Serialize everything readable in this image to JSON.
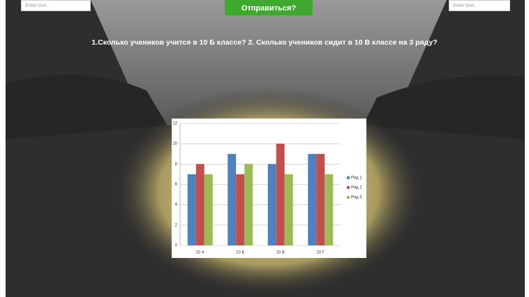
{
  "inputs": [
    "Enter text...",
    "Enter text..."
  ],
  "button": "Отправиться?",
  "question": "1.Сколько учеников учится в 10 Б классе? 2. Сколько учеников сидит в 10 В классе на 3 ряду?",
  "chart_data": {
    "type": "bar",
    "categories": [
      "10 А",
      "10 Б",
      "10 В",
      "10 Г"
    ],
    "series": [
      {
        "name": "Ряд 1",
        "color": "#4f81bd",
        "values": [
          7,
          9,
          8,
          9
        ]
      },
      {
        "name": "Ряд 2",
        "color": "#c0504d",
        "values": [
          8,
          7,
          10,
          9
        ]
      },
      {
        "name": "Ряд 3",
        "color": "#9bbb59",
        "values": [
          7,
          8,
          7,
          7
        ]
      }
    ],
    "ylim": [
      0,
      12
    ],
    "yticks": [
      0,
      2,
      4,
      6,
      8,
      10,
      12
    ],
    "grid": true,
    "legend": "right"
  }
}
